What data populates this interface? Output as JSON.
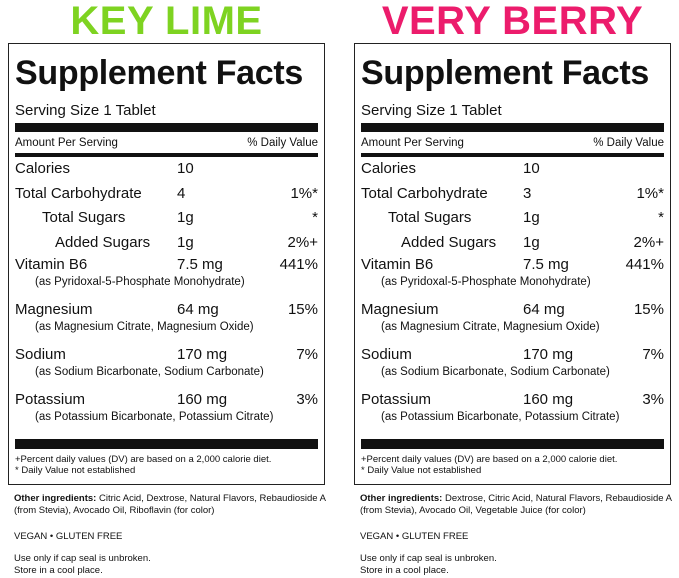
{
  "colors": {
    "key_lime": "#7ed321",
    "very_berry": "#ec1c6c",
    "text": "#111111"
  },
  "products": [
    {
      "heading": "KEY LIME",
      "facts_title": "Supplement Facts",
      "serving": "Serving Size 1 Tablet",
      "amount_label": "Amount Per Serving",
      "dv_label": "% Daily Value",
      "calories": {
        "name": "Calories",
        "amount": "10",
        "dv": ""
      },
      "carbs": {
        "name": "Total Carbohydrate",
        "amount": "4",
        "dv": "1%*"
      },
      "sugars": {
        "name": "Total Sugars",
        "amount": "1g",
        "dv": "*"
      },
      "added": {
        "name": "Added Sugars",
        "amount": "1g",
        "dv": "2%+"
      },
      "b6": {
        "name": "Vitamin B6",
        "amount": "7.5 mg",
        "dv": "441%",
        "sub": "(as Pyridoxal-5-Phosphate Monohydrate)"
      },
      "mg": {
        "name": "Magnesium",
        "amount": "64 mg",
        "dv": "15%",
        "sub": "(as Magnesium Citrate, Magnesium Oxide)"
      },
      "na": {
        "name": "Sodium",
        "amount": "170 mg",
        "dv": "7%",
        "sub": "(as Sodium Bicarbonate, Sodium Carbonate)"
      },
      "k": {
        "name": "Potassium",
        "amount": "160 mg",
        "dv": "3%",
        "sub": "(as Potassium Bicarbonate, Potassium Citrate)"
      },
      "note1": "+Percent daily values (DV) are based on a 2,000 calorie diet.",
      "note2": "* Daily Value not established",
      "other_label": "Other ingredients:",
      "other_text": " Citric Acid, Dextrose, Natural Flavors, Rebaudioside A (from Stevia), Avocado Oil, Riboflavin (for color)",
      "vegan": "VEGAN • GLUTEN FREE",
      "use1": "Use only if cap seal is unbroken.",
      "use2": "Store in a cool place."
    },
    {
      "heading": "VERY BERRY",
      "facts_title": "Supplement Facts",
      "serving": "Serving Size 1 Tablet",
      "amount_label": "Amount Per Serving",
      "dv_label": "% Daily Value",
      "calories": {
        "name": "Calories",
        "amount": "10",
        "dv": ""
      },
      "carbs": {
        "name": "Total Carbohydrate",
        "amount": "3",
        "dv": "1%*"
      },
      "sugars": {
        "name": "Total Sugars",
        "amount": "1g",
        "dv": "*"
      },
      "added": {
        "name": "Added Sugars",
        "amount": "1g",
        "dv": "2%+"
      },
      "b6": {
        "name": "Vitamin B6",
        "amount": "7.5 mg",
        "dv": "441%",
        "sub": "(as Pyridoxal-5-Phosphate Monohydrate)"
      },
      "mg": {
        "name": "Magnesium",
        "amount": "64 mg",
        "dv": "15%",
        "sub": "(as Magnesium Citrate, Magnesium Oxide)"
      },
      "na": {
        "name": "Sodium",
        "amount": "170 mg",
        "dv": "7%",
        "sub": "(as Sodium Bicarbonate, Sodium Carbonate)"
      },
      "k": {
        "name": "Potassium",
        "amount": "160 mg",
        "dv": "3%",
        "sub": "(as Potassium Bicarbonate, Potassium Citrate)"
      },
      "note1": "+Percent daily values (DV) are based on a 2,000 calorie diet.",
      "note2": "* Daily Value not established",
      "other_label": "Other ingredients:",
      "other_text": " Dextrose, Citric Acid, Natural Flavors, Rebaudioside A (from Stevia), Avocado Oil, Vegetable Juice (for color)",
      "vegan": "VEGAN • GLUTEN FREE",
      "use1": "Use only if cap seal is unbroken.",
      "use2": "Store in a cool place."
    }
  ]
}
